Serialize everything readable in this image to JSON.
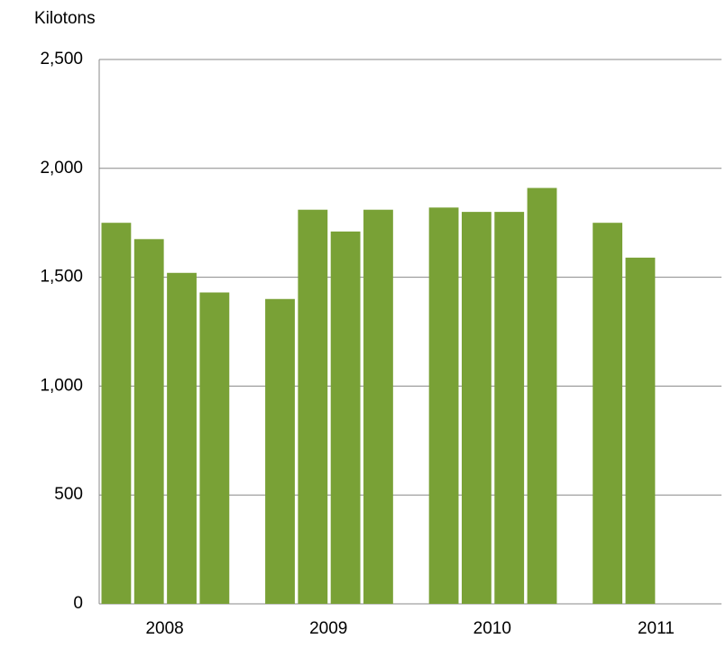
{
  "chart_data": {
    "type": "bar",
    "ylabel": "Kilotons",
    "groups": [
      {
        "name": "2008",
        "values": [
          1750,
          1675,
          1520,
          1430
        ]
      },
      {
        "name": "2009",
        "values": [
          1400,
          1810,
          1710,
          1810
        ]
      },
      {
        "name": "2010",
        "values": [
          1820,
          1800,
          1800,
          1910
        ]
      },
      {
        "name": "2011",
        "values": [
          1750,
          1590,
          null,
          null
        ]
      }
    ],
    "color": "#79a136",
    "ylim": [
      0,
      2500
    ],
    "yticks": [
      0,
      500,
      {
        "value": 1000,
        "label": "1,000"
      },
      {
        "value": 1500,
        "label": "1,500"
      },
      {
        "value": 2000,
        "label": "2,000"
      },
      {
        "value": 2500,
        "label": "2,500"
      }
    ],
    "grid": true
  }
}
